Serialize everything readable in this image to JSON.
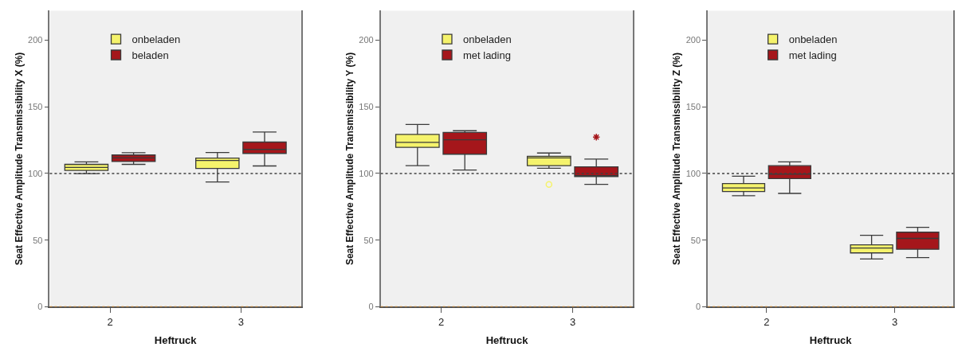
{
  "chart_data": [
    {
      "type": "box",
      "xlabel": "Heftruck",
      "ylabel": "Seat Effective Amplitude Transmissibility X (%)",
      "categories": [
        "2",
        "3"
      ],
      "ylim": [
        0,
        222
      ],
      "yticks": [
        0,
        50,
        100,
        150,
        200
      ],
      "grid": false,
      "legend": "top left",
      "ref_lines": [
        {
          "axis": "y",
          "value": 100,
          "color": "#404040",
          "line_style": "dotted"
        },
        {
          "axis": "y",
          "value": 0,
          "color": "#e08a1e",
          "line_style": "dotted"
        }
      ],
      "series": [
        {
          "name": "onbeladen",
          "color": "#f5f36c",
          "boxes": [
            {
              "low": 99.8,
              "q1": 102.3,
              "median": 104.5,
              "q3": 106.8,
              "high": 108.7
            },
            {
              "low": 93.6,
              "q1": 103.7,
              "median": 109.7,
              "q3": 111.5,
              "high": 115.7
            }
          ]
        },
        {
          "name": "beladen",
          "color": "#a5161b",
          "boxes": [
            {
              "low": 106.8,
              "q1": 108.9,
              "median": 111.7,
              "q3": 113.8,
              "high": 115.5
            },
            {
              "low": 105.6,
              "q1": 115,
              "median": 118,
              "q3": 123.5,
              "high": 131
            }
          ]
        }
      ]
    },
    {
      "type": "box",
      "xlabel": "Heftruck",
      "ylabel": "Seat Effective Amplitude Transmissibility Y (%)",
      "categories": [
        "2",
        "3"
      ],
      "ylim": [
        0,
        222
      ],
      "yticks": [
        0,
        50,
        100,
        150,
        200
      ],
      "grid": false,
      "legend": "top left",
      "ref_lines": [
        {
          "axis": "y",
          "value": 100,
          "color": "#404040",
          "line_style": "dotted"
        },
        {
          "axis": "y",
          "value": 0,
          "color": "#e08a1e",
          "line_style": "dotted"
        }
      ],
      "series": [
        {
          "name": "onbeladen",
          "color": "#f5f36c",
          "marker": "circle",
          "boxes": [
            {
              "low": 105.8,
              "q1": 119.6,
              "median": 123.3,
              "q3": 129.3,
              "high": 136.7
            },
            {
              "low": 103.9,
              "q1": 105.8,
              "median": 111.7,
              "q3": 112.8,
              "high": 115.3,
              "outliers": [
                91.8
              ]
            }
          ]
        },
        {
          "name": "met lading",
          "color": "#a5161b",
          "marker": "star",
          "boxes": [
            {
              "low": 102.5,
              "q1": 114.4,
              "median": 125.2,
              "q3": 130.7,
              "high": 132
            },
            {
              "low": 91.8,
              "q1": 97.7,
              "median": 98.3,
              "q3": 104.9,
              "high": 110.7,
              "outliers": [
                127.2
              ]
            }
          ]
        }
      ]
    },
    {
      "type": "box",
      "xlabel": "Heftruck",
      "ylabel": "Seat Effective Amplitude Transmissibility Z (%)",
      "categories": [
        "2",
        "3"
      ],
      "ylim": [
        0,
        222
      ],
      "yticks": [
        0,
        50,
        100,
        150,
        200
      ],
      "grid": false,
      "legend": "top left",
      "ref_lines": [
        {
          "axis": "y",
          "value": 100,
          "color": "#404040",
          "line_style": "dotted"
        },
        {
          "axis": "y",
          "value": 0,
          "color": "#e08a1e",
          "line_style": "dotted"
        }
      ],
      "series": [
        {
          "name": "onbeladen",
          "color": "#f5f36c",
          "boxes": [
            {
              "low": 83.3,
              "q1": 86.4,
              "median": 89.1,
              "q3": 92.4,
              "high": 97.9
            },
            {
              "low": 35.9,
              "q1": 40.4,
              "median": 44.1,
              "q3": 46.4,
              "high": 53.6
            }
          ]
        },
        {
          "name": "met lading",
          "color": "#a5161b",
          "boxes": [
            {
              "low": 85,
              "q1": 96.1,
              "median": 99.4,
              "q3": 105.8,
              "high": 108.7
            },
            {
              "low": 36.9,
              "q1": 43.1,
              "median": 51.3,
              "q3": 55.9,
              "high": 59.6
            }
          ]
        }
      ]
    }
  ]
}
